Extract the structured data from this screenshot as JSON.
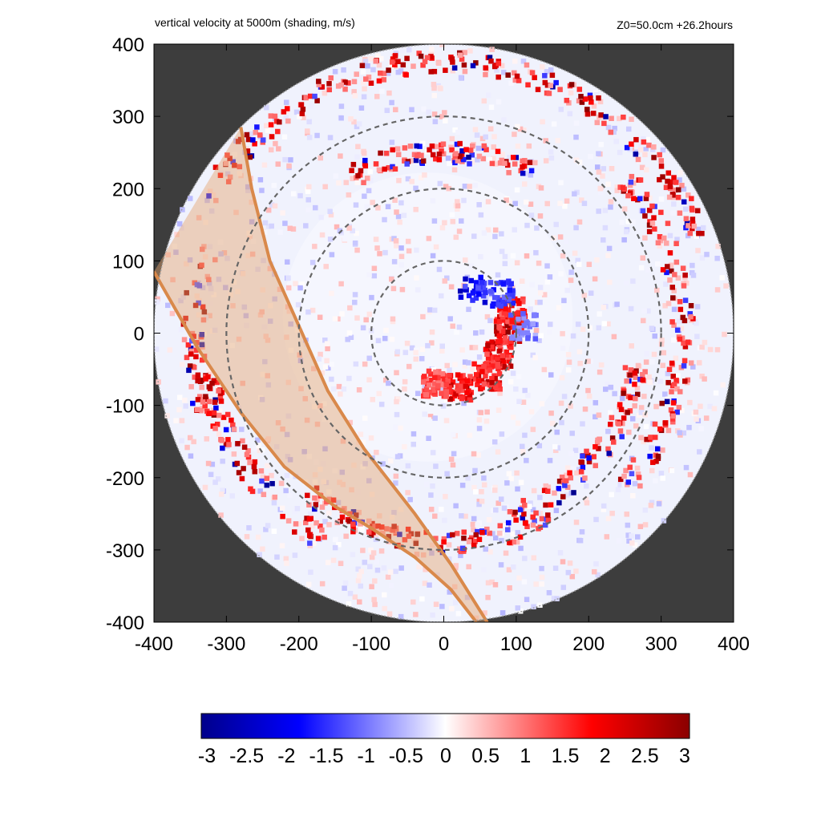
{
  "header": {
    "title": "vertical velocity at 5000m (shading, m/s)",
    "info": "Z0=50.0cm  +26.2hours"
  },
  "colors": {
    "background_outside_domain": "#3d3d3d",
    "negative": "#0000ff",
    "negative_extreme": "#00008b",
    "zero": "#ffffff",
    "positive": "#ff0000",
    "positive_extreme": "#8b0000",
    "range_rings": "#666666",
    "swath_fill": "#e4a56f",
    "swath_edge": "#d9894b"
  },
  "chart_data": {
    "type": "heatmap",
    "title": "vertical velocity at 5000m (shading, m/s)",
    "subtitle": "Z0=50.0cm  +26.2hours",
    "xlabel": "",
    "ylabel": "",
    "xlim": [
      -400,
      400
    ],
    "ylim": [
      -400,
      400
    ],
    "x_ticks": [
      "-400",
      "-300",
      "-200",
      "-100",
      "0",
      "100",
      "200",
      "300",
      "400"
    ],
    "y_ticks": [
      "400",
      "300",
      "200",
      "100",
      "0",
      "-100",
      "-200",
      "-300",
      "-400"
    ],
    "domain_radius": 400,
    "range_rings": [
      100,
      200,
      300
    ],
    "colorbar": {
      "min": -3,
      "max": 3,
      "ticks": [
        "-3",
        "-2.5",
        "-2",
        "-1.5",
        "-1",
        "-0.5",
        "0",
        "0.5",
        "1",
        "1.5",
        "2",
        "2.5",
        "3"
      ]
    },
    "swath": {
      "left_edge": [
        [
          -400,
          85
        ],
        [
          -340,
          -20
        ],
        [
          -280,
          -110
        ],
        [
          -220,
          -185
        ],
        [
          -150,
          -240
        ],
        [
          -100,
          -270
        ],
        [
          -40,
          -310
        ],
        [
          10,
          -355
        ],
        [
          45,
          -400
        ]
      ],
      "right_edge": [
        [
          -280,
          285
        ],
        [
          -265,
          200
        ],
        [
          -240,
          100
        ],
        [
          -200,
          10
        ],
        [
          -160,
          -80
        ],
        [
          -110,
          -160
        ],
        [
          -40,
          -250
        ],
        [
          10,
          -320
        ],
        [
          60,
          -400
        ]
      ]
    },
    "eyewall_features": [
      {
        "x": 75,
        "y": -30,
        "sign": 1,
        "intensity": 2.8
      },
      {
        "x": 90,
        "y": 5,
        "sign": 1,
        "intensity": 3.0
      },
      {
        "x": 95,
        "y": 30,
        "sign": 1,
        "intensity": 2.6
      },
      {
        "x": 60,
        "y": -60,
        "sign": 1,
        "intensity": 2.8
      },
      {
        "x": 20,
        "y": -75,
        "sign": 1,
        "intensity": 2.9
      },
      {
        "x": -10,
        "y": -70,
        "sign": 1,
        "intensity": 2.2
      },
      {
        "x": 40,
        "y": 60,
        "sign": -1,
        "intensity": 2.8
      },
      {
        "x": 80,
        "y": 55,
        "sign": -1,
        "intensity": 2.4
      },
      {
        "x": 110,
        "y": 10,
        "sign": -1,
        "intensity": 1.6
      }
    ],
    "rainbands": [
      {
        "radius": 375,
        "theta_start": 20,
        "theta_end": 150,
        "sign": 1
      },
      {
        "radius": 330,
        "theta_start": -40,
        "theta_end": 40,
        "sign": 1
      },
      {
        "radius": 330,
        "theta_start": 190,
        "theta_end": 240,
        "sign": 1
      },
      {
        "radius": 290,
        "theta_start": 230,
        "theta_end": 300,
        "sign": 1
      },
      {
        "radius": 250,
        "theta_start": 60,
        "theta_end": 120,
        "sign": 1
      },
      {
        "radius": 270,
        "theta_start": -70,
        "theta_end": -10,
        "sign": 1
      },
      {
        "radius": 345,
        "theta_start": 160,
        "theta_end": 200,
        "sign": 1
      }
    ]
  }
}
